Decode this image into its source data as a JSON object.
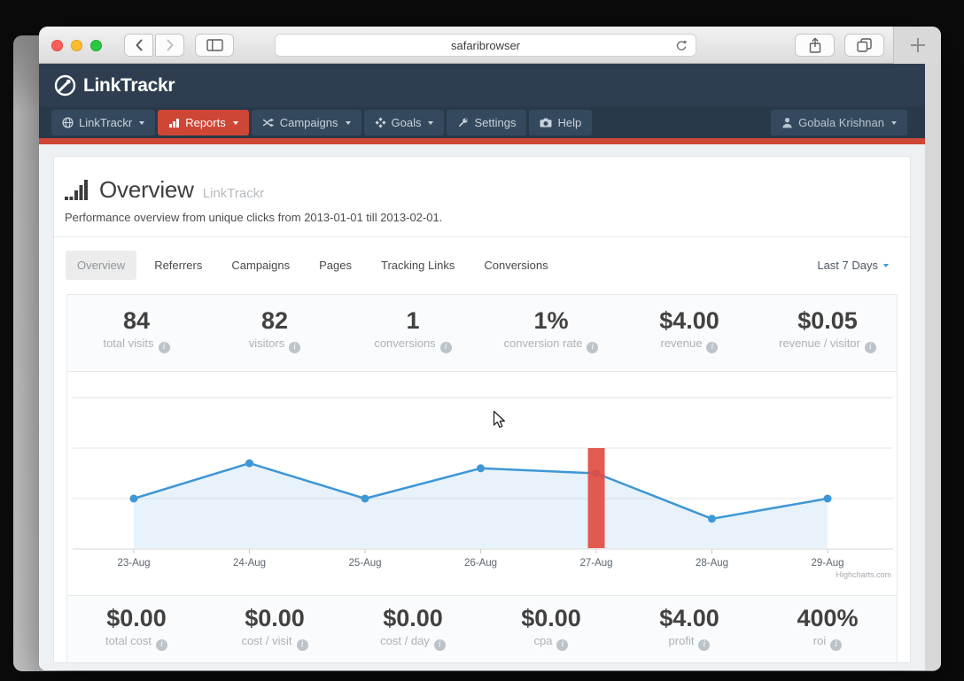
{
  "browser": {
    "address": "safaribrowser"
  },
  "brand": {
    "logo_text": "LinkTrackr"
  },
  "nav": {
    "items": [
      {
        "label": "LinkTrackr",
        "icon": "globe-icon",
        "caret": true,
        "active": false
      },
      {
        "label": "Reports",
        "icon": "bar-chart-icon",
        "caret": true,
        "active": true
      },
      {
        "label": "Campaigns",
        "icon": "shuffle-icon",
        "caret": true,
        "active": false
      },
      {
        "label": "Goals",
        "icon": "diamonds-icon",
        "caret": true,
        "active": false
      },
      {
        "label": "Settings",
        "icon": "wrench-icon",
        "caret": false,
        "active": false
      },
      {
        "label": "Help",
        "icon": "camera-icon",
        "caret": false,
        "active": false
      }
    ],
    "user": {
      "label": "Gobala Krishnan"
    }
  },
  "page": {
    "title": "Overview",
    "title_suffix": "LinkTrackr",
    "subtitle": "Performance overview from unique clicks from 2013-01-01 till 2013-02-01.",
    "tabs": [
      {
        "label": "Overview",
        "active": true
      },
      {
        "label": "Referrers",
        "active": false
      },
      {
        "label": "Campaigns",
        "active": false
      },
      {
        "label": "Pages",
        "active": false
      },
      {
        "label": "Tracking Links",
        "active": false
      },
      {
        "label": "Conversions",
        "active": false
      }
    ],
    "date_range": "Last 7 Days",
    "stats_top": [
      {
        "value": "84",
        "label": "total visits"
      },
      {
        "value": "82",
        "label": "visitors"
      },
      {
        "value": "1",
        "label": "conversions"
      },
      {
        "value": "1%",
        "label": "conversion rate"
      },
      {
        "value": "$4.00",
        "label": "revenue"
      },
      {
        "value": "$0.05",
        "label": "revenue / visitor"
      }
    ],
    "stats_bottom": [
      {
        "value": "$0.00",
        "label": "total cost"
      },
      {
        "value": "$0.00",
        "label": "cost / visit"
      },
      {
        "value": "$0.00",
        "label": "cost / day"
      },
      {
        "value": "$0.00",
        "label": "cpa"
      },
      {
        "value": "$4.00",
        "label": "profit"
      },
      {
        "value": "400%",
        "label": "roi"
      }
    ]
  },
  "chart_data": {
    "type": "line",
    "categories": [
      "23-Aug",
      "24-Aug",
      "25-Aug",
      "26-Aug",
      "27-Aug",
      "28-Aug",
      "29-Aug"
    ],
    "series": [
      {
        "name": "visits",
        "type": "area",
        "color": "#3e97d6",
        "fill": "rgba(62,151,214,0.12)",
        "values": [
          10,
          17,
          10,
          16,
          15,
          6,
          10
        ]
      },
      {
        "name": "highlight-column",
        "type": "column",
        "color": "#e14c41",
        "values": [
          null,
          null,
          null,
          null,
          20,
          null,
          null
        ]
      }
    ],
    "ylim": [
      0,
      30
    ],
    "grid_step": 10,
    "grid": true,
    "legend": "none",
    "markers": true,
    "credits": "Highcharts.com"
  },
  "colors": {
    "accent_red": "#ce4736",
    "header_navy": "#2e3e50",
    "line_blue": "#3e97d6",
    "column_red": "#e14c41"
  }
}
